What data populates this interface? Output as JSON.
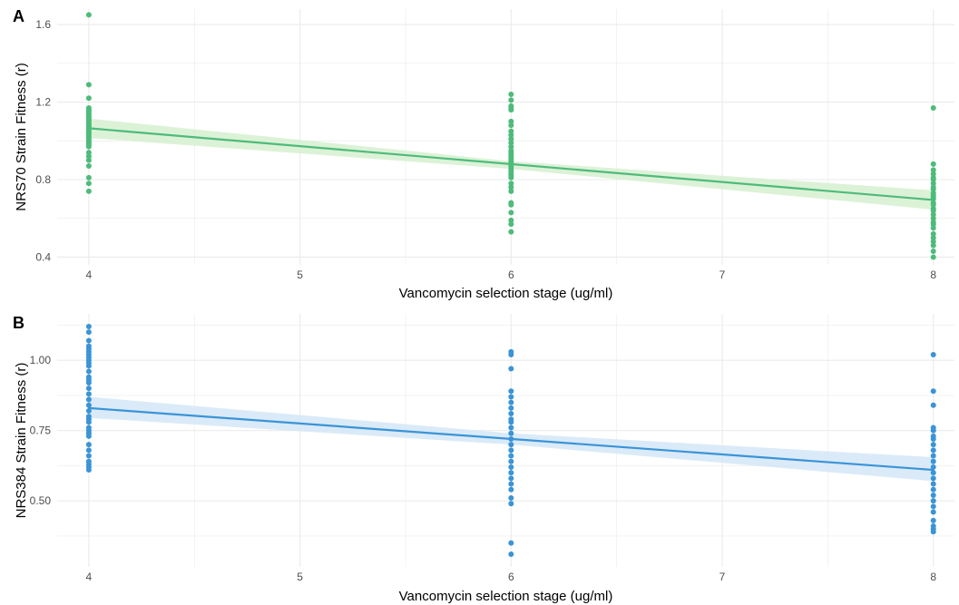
{
  "chart_data": [
    {
      "type": "scatter",
      "panel_label": "A",
      "xlabel": "Vancomycin selection stage (ug/ml)",
      "ylabel": "NRS70 Strain Fitness (r)",
      "xlim": [
        3.85,
        8.1
      ],
      "ylim": [
        0.36,
        1.68
      ],
      "x_ticks": [
        4,
        5,
        6,
        7,
        8
      ],
      "y_ticks": [
        0.4,
        0.8,
        1.2,
        1.6
      ],
      "y_tick_labels": [
        "0.4",
        "0.8",
        "1.2",
        "1.6"
      ],
      "grid": true,
      "color": "#4dbb7a",
      "band_color": "#d6f0d0",
      "points": {
        "4": [
          1.65,
          1.29,
          1.22,
          1.17,
          1.16,
          1.15,
          1.14,
          1.13,
          1.12,
          1.11,
          1.1,
          1.09,
          1.08,
          1.07,
          1.06,
          1.05,
          1.04,
          1.03,
          1.02,
          1.01,
          1.0,
          0.99,
          0.98,
          0.97,
          0.94,
          0.92,
          0.9,
          0.87,
          0.81,
          0.78,
          0.74
        ],
        "6": [
          1.24,
          1.21,
          1.18,
          1.17,
          1.16,
          1.1,
          1.08,
          1.05,
          1.03,
          1.01,
          0.99,
          0.97,
          0.95,
          0.94,
          0.93,
          0.92,
          0.91,
          0.9,
          0.89,
          0.87,
          0.86,
          0.85,
          0.84,
          0.83,
          0.82,
          0.81,
          0.78,
          0.76,
          0.74,
          0.68,
          0.67,
          0.63,
          0.59,
          0.57,
          0.53
        ],
        "8": [
          1.17,
          0.88,
          0.85,
          0.83,
          0.81,
          0.8,
          0.78,
          0.76,
          0.75,
          0.73,
          0.72,
          0.71,
          0.7,
          0.68,
          0.67,
          0.65,
          0.64,
          0.62,
          0.6,
          0.58,
          0.57,
          0.55,
          0.52,
          0.5,
          0.48,
          0.46,
          0.43,
          0.4
        ]
      },
      "trend": {
        "x": [
          4,
          8
        ],
        "y": [
          1.065,
          0.695
        ]
      },
      "band": {
        "x": [
          4,
          6,
          8
        ],
        "lower": [
          1.015,
          0.855,
          0.645
        ],
        "upper": [
          1.115,
          0.895,
          0.745
        ]
      }
    },
    {
      "type": "scatter",
      "panel_label": "B",
      "xlabel": "Vancomycin selection stage (ug/ml)",
      "ylabel": "NRS384 Strain Fitness (r)",
      "xlim": [
        3.85,
        8.1
      ],
      "ylim": [
        0.265,
        1.165
      ],
      "x_ticks": [
        4,
        5,
        6,
        7,
        8
      ],
      "y_ticks": [
        0.5,
        0.75,
        1.0
      ],
      "y_tick_labels": [
        "0.50",
        "0.75",
        "1.00"
      ],
      "grid": true,
      "color": "#3a94d6",
      "band_color": "#d3e6f7",
      "points": {
        "4": [
          1.12,
          1.1,
          1.07,
          1.05,
          1.04,
          1.03,
          1.02,
          1.01,
          1.0,
          0.99,
          0.98,
          0.96,
          0.94,
          0.93,
          0.92,
          0.9,
          0.88,
          0.86,
          0.84,
          0.82,
          0.8,
          0.79,
          0.78,
          0.76,
          0.75,
          0.74,
          0.73,
          0.7,
          0.68,
          0.66,
          0.64,
          0.63,
          0.62,
          0.61
        ],
        "6": [
          1.03,
          1.02,
          0.97,
          0.89,
          0.87,
          0.85,
          0.83,
          0.81,
          0.79,
          0.78,
          0.76,
          0.74,
          0.72,
          0.7,
          0.68,
          0.66,
          0.64,
          0.62,
          0.6,
          0.58,
          0.56,
          0.54,
          0.51,
          0.49,
          0.35,
          0.31
        ],
        "8": [
          1.02,
          0.89,
          0.84,
          0.76,
          0.75,
          0.73,
          0.72,
          0.7,
          0.68,
          0.66,
          0.64,
          0.62,
          0.6,
          0.58,
          0.56,
          0.54,
          0.52,
          0.5,
          0.48,
          0.46,
          0.43,
          0.41,
          0.4,
          0.39
        ]
      },
      "trend": {
        "x": [
          4,
          8
        ],
        "y": [
          0.83,
          0.61
        ]
      },
      "band": {
        "x": [
          4,
          6,
          8
        ],
        "lower": [
          0.795,
          0.7,
          0.57
        ],
        "upper": [
          0.87,
          0.74,
          0.655
        ]
      }
    }
  ]
}
